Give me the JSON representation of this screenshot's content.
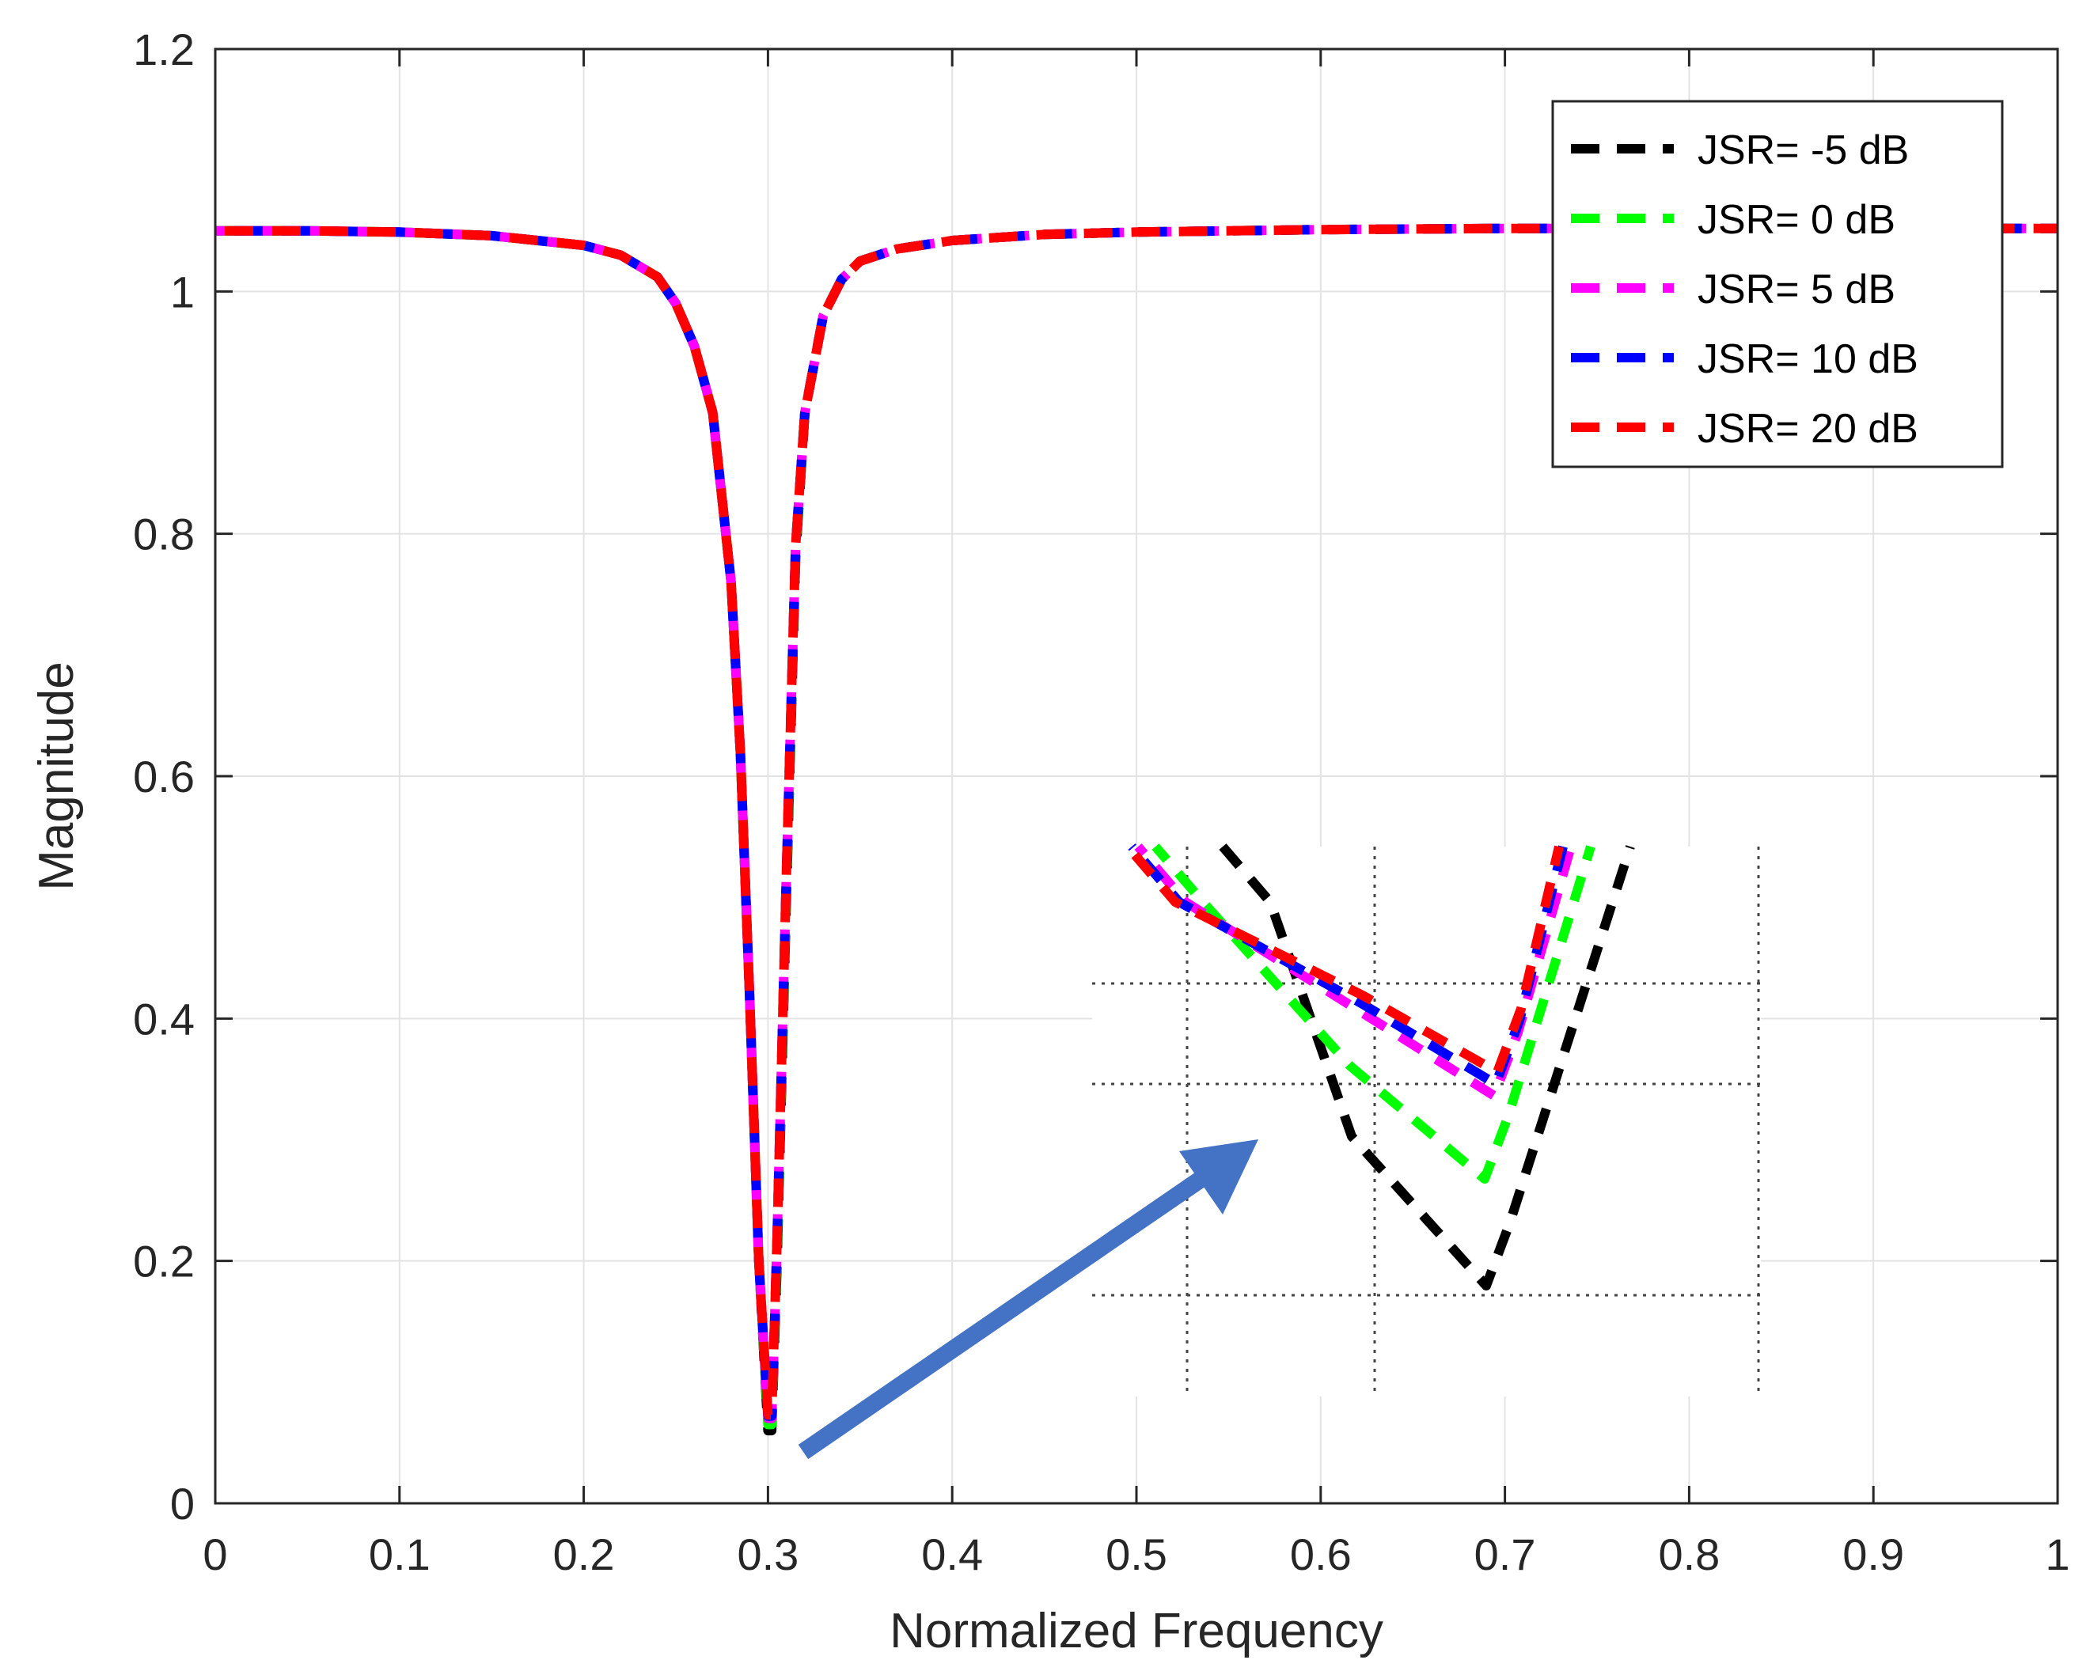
{
  "chart_data": {
    "type": "line",
    "title": "",
    "xlabel": "Normalized Frequency",
    "ylabel": "Magnitude",
    "xlim": [
      0,
      1
    ],
    "ylim": [
      0,
      1.2
    ],
    "xticks": [
      "0",
      "0.1",
      "0.2",
      "0.3",
      "0.4",
      "0.5",
      "0.6",
      "0.7",
      "0.8",
      "0.9",
      "1"
    ],
    "yticks": [
      "0",
      "0.2",
      "0.4",
      "0.6",
      "0.8",
      "1",
      "1.2"
    ],
    "grid": true,
    "legend_position": "top-right",
    "line_style": "dashed",
    "series": [
      {
        "name": "JSR= -5 dB",
        "color": "#000000",
        "x": [
          0,
          0.05,
          0.1,
          0.15,
          0.2,
          0.22,
          0.24,
          0.25,
          0.26,
          0.27,
          0.28,
          0.285,
          0.29,
          0.295,
          0.3,
          0.302,
          0.305,
          0.31,
          0.315,
          0.32,
          0.33,
          0.34,
          0.35,
          0.37,
          0.4,
          0.45,
          0.5,
          0.6,
          0.7,
          0.8,
          0.9,
          1.0
        ],
        "y": [
          1.05,
          1.05,
          1.049,
          1.046,
          1.038,
          1.03,
          1.012,
          0.99,
          0.955,
          0.9,
          0.76,
          0.62,
          0.42,
          0.2,
          0.06,
          0.06,
          0.2,
          0.5,
          0.78,
          0.9,
          0.98,
          1.01,
          1.025,
          1.035,
          1.042,
          1.047,
          1.049,
          1.051,
          1.052,
          1.052,
          1.052,
          1.052
        ]
      },
      {
        "name": "JSR= 0 dB",
        "color": "#00ff00",
        "x": [
          0,
          0.05,
          0.1,
          0.15,
          0.2,
          0.22,
          0.24,
          0.25,
          0.26,
          0.27,
          0.28,
          0.285,
          0.29,
          0.295,
          0.3,
          0.302,
          0.305,
          0.31,
          0.315,
          0.32,
          0.33,
          0.34,
          0.35,
          0.37,
          0.4,
          0.45,
          0.5,
          0.6,
          0.7,
          0.8,
          0.9,
          1.0
        ],
        "y": [
          1.05,
          1.05,
          1.049,
          1.046,
          1.038,
          1.03,
          1.012,
          0.99,
          0.955,
          0.9,
          0.76,
          0.62,
          0.42,
          0.2,
          0.065,
          0.065,
          0.21,
          0.51,
          0.785,
          0.9,
          0.98,
          1.01,
          1.025,
          1.035,
          1.042,
          1.047,
          1.049,
          1.051,
          1.052,
          1.052,
          1.052,
          1.052
        ]
      },
      {
        "name": "JSR= 5 dB",
        "color": "#ff00ff",
        "x": [
          0,
          0.05,
          0.1,
          0.15,
          0.2,
          0.22,
          0.24,
          0.25,
          0.26,
          0.27,
          0.28,
          0.285,
          0.29,
          0.295,
          0.3,
          0.302,
          0.305,
          0.31,
          0.315,
          0.32,
          0.33,
          0.34,
          0.35,
          0.37,
          0.4,
          0.45,
          0.5,
          0.6,
          0.7,
          0.8,
          0.9,
          1.0
        ],
        "y": [
          1.05,
          1.05,
          1.049,
          1.046,
          1.038,
          1.03,
          1.012,
          0.99,
          0.955,
          0.9,
          0.76,
          0.62,
          0.42,
          0.2,
          0.07,
          0.07,
          0.22,
          0.52,
          0.79,
          0.9,
          0.98,
          1.01,
          1.025,
          1.035,
          1.042,
          1.047,
          1.049,
          1.051,
          1.052,
          1.052,
          1.052,
          1.052
        ]
      },
      {
        "name": "JSR= 10 dB",
        "color": "#0000ff",
        "x": [
          0,
          0.05,
          0.1,
          0.15,
          0.2,
          0.22,
          0.24,
          0.25,
          0.26,
          0.27,
          0.28,
          0.285,
          0.29,
          0.295,
          0.3,
          0.302,
          0.305,
          0.31,
          0.315,
          0.32,
          0.33,
          0.34,
          0.35,
          0.37,
          0.4,
          0.45,
          0.5,
          0.6,
          0.7,
          0.8,
          0.9,
          1.0
        ],
        "y": [
          1.05,
          1.05,
          1.049,
          1.046,
          1.038,
          1.03,
          1.012,
          0.99,
          0.955,
          0.9,
          0.76,
          0.62,
          0.42,
          0.2,
          0.072,
          0.072,
          0.22,
          0.52,
          0.79,
          0.9,
          0.98,
          1.01,
          1.025,
          1.035,
          1.042,
          1.047,
          1.049,
          1.051,
          1.052,
          1.052,
          1.052,
          1.052
        ]
      },
      {
        "name": "JSR= 20 dB",
        "color": "#ff0000",
        "x": [
          0,
          0.05,
          0.1,
          0.15,
          0.2,
          0.22,
          0.24,
          0.25,
          0.26,
          0.27,
          0.28,
          0.285,
          0.29,
          0.295,
          0.3,
          0.302,
          0.305,
          0.31,
          0.315,
          0.32,
          0.33,
          0.34,
          0.35,
          0.37,
          0.4,
          0.45,
          0.5,
          0.6,
          0.7,
          0.8,
          0.9,
          1.0
        ],
        "y": [
          1.05,
          1.05,
          1.049,
          1.046,
          1.038,
          1.03,
          1.012,
          0.99,
          0.955,
          0.9,
          0.76,
          0.62,
          0.42,
          0.2,
          0.073,
          0.073,
          0.22,
          0.52,
          0.79,
          0.9,
          0.98,
          1.01,
          1.025,
          1.035,
          1.042,
          1.047,
          1.049,
          1.051,
          1.052,
          1.052,
          1.052,
          1.052
        ]
      }
    ],
    "inset": {
      "description_only": false,
      "series_minima": [
        {
          "name": "JSR= -5 dB",
          "color": "#000000",
          "min_level": 0.17
        },
        {
          "name": "JSR= 0 dB",
          "color": "#00ff00",
          "min_level": 0.26
        },
        {
          "name": "JSR= 5 dB",
          "color": "#ff00ff",
          "min_level": 0.33
        },
        {
          "name": "JSR= 10 dB",
          "color": "#0000ff",
          "min_level": 0.34
        },
        {
          "name": "JSR= 20 dB",
          "color": "#ff0000",
          "min_level": 0.35
        }
      ]
    },
    "annotation_arrow_color": "#4472c4"
  }
}
